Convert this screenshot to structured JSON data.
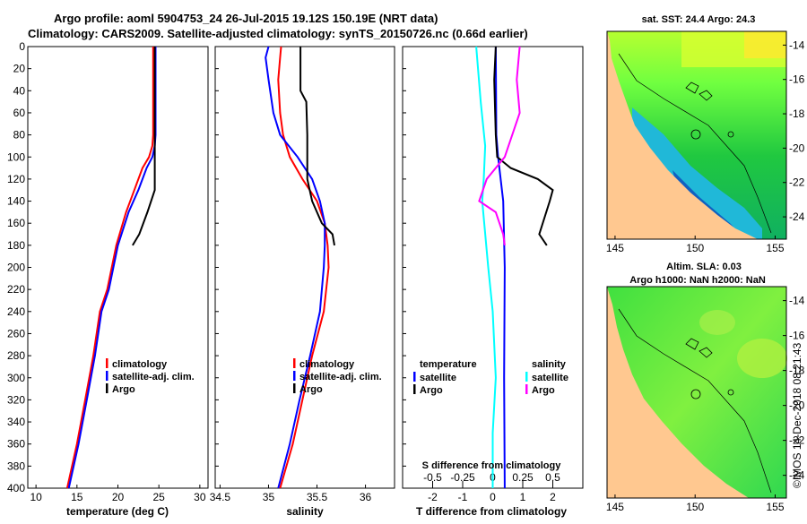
{
  "header": {
    "line1": "Argo profile: aoml 5904753_24 26-Jul-2015 19.12S 150.19E (NRT data)",
    "line2": "Climatology: CARS2009. Satellite-adjusted climatology: synTS_20150726.nc (0.66d earlier)"
  },
  "watermark": "©IMOS 14-Dec-2018 08:21:43",
  "colors": {
    "climatology": "#ff0000",
    "satellite": "#0000ff",
    "argo": "#000000",
    "sat_diff": "#00ffff",
    "sal_diff": "#ff00ff"
  },
  "chart_data": [
    {
      "id": "temperature",
      "type": "line",
      "xlabel": "temperature (deg C)",
      "ylabel": "",
      "xlim": [
        9,
        31
      ],
      "ylim": [
        400,
        0
      ],
      "xticks": [
        "10",
        "15",
        "20",
        "25",
        "30"
      ],
      "yticks": [
        "0",
        "20",
        "40",
        "60",
        "80",
        "100",
        "120",
        "140",
        "160",
        "180",
        "200",
        "220",
        "240",
        "260",
        "280",
        "300",
        "320",
        "340",
        "360",
        "380",
        "400"
      ],
      "legend": [
        "climatology",
        "satellite-adj. clim.",
        "Argo"
      ],
      "series": [
        {
          "name": "climatology",
          "color": "#ff0000",
          "points": [
            [
              24.3,
              0
            ],
            [
              24.3,
              40
            ],
            [
              24.3,
              80
            ],
            [
              24.2,
              90
            ],
            [
              23.8,
              100
            ],
            [
              23.0,
              110
            ],
            [
              22.0,
              130
            ],
            [
              21.0,
              150
            ],
            [
              19.8,
              180
            ],
            [
              18.7,
              220
            ],
            [
              17.8,
              240
            ],
            [
              17.0,
              280
            ],
            [
              16.0,
              320
            ],
            [
              15.0,
              360
            ],
            [
              13.8,
              400
            ]
          ]
        },
        {
          "name": "satellite-adj. clim.",
          "color": "#0000ff",
          "points": [
            [
              24.6,
              0
            ],
            [
              24.6,
              40
            ],
            [
              24.6,
              80
            ],
            [
              24.5,
              90
            ],
            [
              24.2,
              100
            ],
            [
              23.5,
              110
            ],
            [
              22.5,
              130
            ],
            [
              21.3,
              150
            ],
            [
              20.0,
              180
            ],
            [
              18.9,
              220
            ],
            [
              18.0,
              240
            ],
            [
              17.2,
              280
            ],
            [
              16.2,
              320
            ],
            [
              15.2,
              360
            ],
            [
              14.0,
              400
            ]
          ]
        },
        {
          "name": "Argo",
          "color": "#000000",
          "points": [
            [
              24.5,
              0
            ],
            [
              24.5,
              80
            ],
            [
              24.5,
              100
            ],
            [
              24.5,
              130
            ],
            [
              23.6,
              150
            ],
            [
              22.6,
              170
            ],
            [
              21.8,
              180
            ]
          ]
        }
      ]
    },
    {
      "id": "salinity",
      "type": "line",
      "xlabel": "salinity",
      "ylabel": "",
      "xlim": [
        34.45,
        36.3
      ],
      "ylim": [
        400,
        0
      ],
      "xticks": [
        "34.5",
        "35",
        "35.5",
        "36"
      ],
      "legend": [
        "climatology",
        "satellite-adj. clim.",
        "Argo"
      ],
      "series": [
        {
          "name": "climatology",
          "color": "#ff0000",
          "points": [
            [
              35.13,
              0
            ],
            [
              35.12,
              10
            ],
            [
              35.1,
              30
            ],
            [
              35.12,
              60
            ],
            [
              35.15,
              80
            ],
            [
              35.22,
              100
            ],
            [
              35.35,
              120
            ],
            [
              35.5,
              140
            ],
            [
              35.58,
              160
            ],
            [
              35.61,
              180
            ],
            [
              35.62,
              200
            ],
            [
              35.57,
              240
            ],
            [
              35.45,
              280
            ],
            [
              35.35,
              320
            ],
            [
              35.25,
              360
            ],
            [
              35.12,
              400
            ]
          ]
        },
        {
          "name": "satellite-adj. clim.",
          "color": "#0000ff",
          "points": [
            [
              35.0,
              0
            ],
            [
              34.97,
              10
            ],
            [
              35.0,
              30
            ],
            [
              35.05,
              60
            ],
            [
              35.12,
              80
            ],
            [
              35.3,
              100
            ],
            [
              35.45,
              120
            ],
            [
              35.53,
              140
            ],
            [
              35.58,
              160
            ],
            [
              35.58,
              180
            ],
            [
              35.57,
              200
            ],
            [
              35.53,
              240
            ],
            [
              35.43,
              280
            ],
            [
              35.32,
              320
            ],
            [
              35.22,
              360
            ],
            [
              35.1,
              400
            ]
          ]
        },
        {
          "name": "Argo",
          "color": "#000000",
          "points": [
            [
              35.33,
              0
            ],
            [
              35.33,
              10
            ],
            [
              35.33,
              40
            ],
            [
              35.39,
              50
            ],
            [
              35.4,
              80
            ],
            [
              35.4,
              120
            ],
            [
              35.45,
              140
            ],
            [
              35.55,
              160
            ],
            [
              35.66,
              170
            ],
            [
              35.68,
              180
            ]
          ]
        }
      ]
    },
    {
      "id": "difference",
      "type": "line",
      "xlabel": "T difference from climatology",
      "ylabel": "",
      "xlim": [
        -3.0,
        3.0
      ],
      "ylim": [
        400,
        0
      ],
      "xticks": [
        "-2",
        "-1",
        "0",
        "1",
        "2"
      ],
      "s_axis_label": "S difference from climatology",
      "s_ticks": [
        "-0.5",
        "-0.25",
        "0",
        "0.25",
        "0.5"
      ],
      "legend_temperature_title": "temperature",
      "legend_salinity_title": "salinity",
      "legend_temperature": [
        "satellite",
        "Argo"
      ],
      "legend_salinity": [
        "satellite",
        "Argo"
      ],
      "series": [
        {
          "name": "T satellite",
          "color": "#0000ff",
          "points": [
            [
              0.1,
              0
            ],
            [
              0.12,
              80
            ],
            [
              0.18,
              100
            ],
            [
              0.35,
              140
            ],
            [
              0.4,
              200
            ],
            [
              0.38,
              300
            ],
            [
              0.4,
              400
            ]
          ]
        },
        {
          "name": "S satellite",
          "color": "#00ffff",
          "points": [
            [
              -0.55,
              0
            ],
            [
              -0.4,
              50
            ],
            [
              -0.25,
              90
            ],
            [
              -0.3,
              120
            ],
            [
              -0.35,
              140
            ],
            [
              -0.15,
              200
            ],
            [
              0,
              240
            ],
            [
              0.1,
              300
            ],
            [
              0,
              350
            ],
            [
              0,
              400
            ]
          ]
        },
        {
          "name": "T Argo",
          "color": "#000000",
          "points": [
            [
              0.1,
              0
            ],
            [
              0.05,
              30
            ],
            [
              0.1,
              80
            ],
            [
              0.15,
              100
            ],
            [
              0.6,
              110
            ],
            [
              1.5,
              120
            ],
            [
              2.0,
              130
            ],
            [
              1.9,
              140
            ],
            [
              1.55,
              170
            ],
            [
              1.8,
              180
            ]
          ]
        },
        {
          "name": "S Argo",
          "color": "#ff00ff",
          "points": [
            [
              0.9,
              0
            ],
            [
              0.8,
              30
            ],
            [
              0.9,
              60
            ],
            [
              0.4,
              100
            ],
            [
              -0.2,
              120
            ],
            [
              -0.45,
              140
            ],
            [
              0.1,
              150
            ],
            [
              0.35,
              170
            ],
            [
              0.4,
              180
            ]
          ]
        }
      ]
    }
  ],
  "maps": [
    {
      "id": "sst",
      "title": "sat. SST: 24.4 Argo: 24.3",
      "xticks": [
        "145",
        "150",
        "155"
      ],
      "yticks": [
        "-14",
        "-16",
        "-18",
        "-20",
        "-22",
        "-24"
      ]
    },
    {
      "id": "sla",
      "title_line1": "Altim. SLA: 0.03",
      "title_line2": "Argo h1000: NaN h2000: NaN",
      "xticks": [
        "145",
        "150",
        "155"
      ],
      "yticks": [
        "-14",
        "-16",
        "-18",
        "-20",
        "-22",
        "-24"
      ]
    }
  ]
}
